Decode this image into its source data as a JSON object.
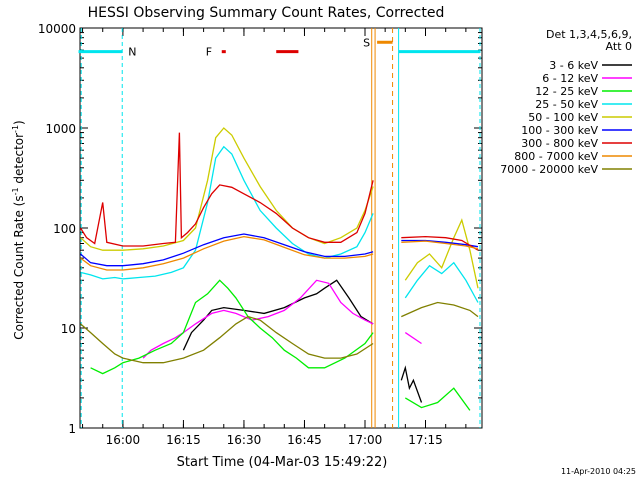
{
  "chart_data": {
    "type": "line",
    "title": "HESSI Observing Summary Count Rates, Corrected",
    "xlabel": "Start Time (04-Mar-03 15:49:22)",
    "ylabel": "Corrected Count Rate (s⁻¹ detector⁻¹)",
    "ylabel_base": "Corrected Count Rate (s",
    "ylabel_mid": " detector",
    "ylabel_end": ")",
    "ylabel_sup": "-1",
    "yscale": "log",
    "ylim": [
      1,
      10000
    ],
    "xlim": [
      "15:49:22",
      "17:29:00"
    ],
    "x_ticks": [
      "16:00",
      "16:15",
      "16:30",
      "16:45",
      "17:00",
      "17:15"
    ],
    "y_ticks": [
      "1",
      "10",
      "100",
      "1000",
      "10000"
    ],
    "grid": false,
    "legend_position": "top-right",
    "legend_header": [
      "Det 1,3,4,5,6,9,",
      "Att 0"
    ],
    "footer_date": "11-Apr-2010 04:25",
    "flags": [
      {
        "label": "N",
        "color": "#00e5ee",
        "segments": [
          [
            "15:49",
            "15:59:50"
          ],
          [
            "17:08:20",
            "17:28:30"
          ]
        ]
      },
      {
        "label": "F",
        "color": "#dd0000",
        "segments": [
          [
            "16:24:30",
            "16:25:30"
          ],
          [
            "16:38",
            "16:43:30"
          ]
        ]
      },
      {
        "label": "S",
        "color": "#ee8800",
        "segments": [
          [
            "17:03",
            "17:06:50"
          ]
        ]
      }
    ],
    "series": [
      {
        "name": "3 - 6 keV",
        "color": "#000000",
        "values": [
          [
            "16:15",
            6
          ],
          [
            "16:17",
            9
          ],
          [
            "16:20",
            12
          ],
          [
            "16:22",
            15
          ],
          [
            "16:25",
            16
          ],
          [
            "16:30",
            15
          ],
          [
            "16:35",
            14
          ],
          [
            "16:40",
            16
          ],
          [
            "16:45",
            20
          ],
          [
            "16:48",
            22
          ],
          [
            "16:50",
            25
          ],
          [
            "16:53",
            30
          ],
          [
            "16:56",
            20
          ],
          [
            "16:59",
            13
          ],
          [
            "17:02",
            11
          ],
          [
            "17:09",
            3
          ],
          [
            "17:10",
            4
          ],
          [
            "17:11",
            2.5
          ],
          [
            "17:12",
            3
          ],
          [
            "17:14",
            1.8
          ]
        ]
      },
      {
        "name": "6 - 12 keV",
        "color": "#ff00ff",
        "values": [
          [
            "16:05",
            5
          ],
          [
            "16:07",
            6
          ],
          [
            "16:10",
            7
          ],
          [
            "16:13",
            8
          ],
          [
            "16:15",
            9
          ],
          [
            "16:18",
            11
          ],
          [
            "16:22",
            14
          ],
          [
            "16:25",
            15
          ],
          [
            "16:28",
            14
          ],
          [
            "16:32",
            12
          ],
          [
            "16:36",
            13
          ],
          [
            "16:40",
            15
          ],
          [
            "16:44",
            20
          ],
          [
            "16:48",
            30
          ],
          [
            "16:51",
            28
          ],
          [
            "16:54",
            18
          ],
          [
            "16:57",
            14
          ],
          [
            "17:00",
            12
          ],
          [
            "17:02",
            11
          ],
          [
            "17:10",
            9
          ],
          [
            "17:14",
            7
          ]
        ]
      },
      {
        "name": "12 - 25 keV",
        "color": "#00ee00",
        "values": [
          [
            "15:52",
            4
          ],
          [
            "15:55",
            3.5
          ],
          [
            "15:58",
            4
          ],
          [
            "16:00",
            4.5
          ],
          [
            "16:04",
            5
          ],
          [
            "16:08",
            6
          ],
          [
            "16:12",
            7
          ],
          [
            "16:15",
            9
          ],
          [
            "16:18",
            18
          ],
          [
            "16:21",
            22
          ],
          [
            "16:24",
            30
          ],
          [
            "16:26",
            25
          ],
          [
            "16:28",
            20
          ],
          [
            "16:31",
            13
          ],
          [
            "16:34",
            10
          ],
          [
            "16:37",
            8
          ],
          [
            "16:40",
            6
          ],
          [
            "16:43",
            5
          ],
          [
            "16:46",
            4
          ],
          [
            "16:50",
            4
          ],
          [
            "16:55",
            5
          ],
          [
            "17:00",
            7
          ],
          [
            "17:02",
            9
          ],
          [
            "17:10",
            2
          ],
          [
            "17:14",
            1.6
          ],
          [
            "17:18",
            1.8
          ],
          [
            "17:22",
            2.5
          ],
          [
            "17:26",
            1.5
          ]
        ]
      },
      {
        "name": "25 - 50 keV",
        "color": "#00e5ee",
        "values": [
          [
            "15:49:30",
            36
          ],
          [
            "15:52",
            34
          ],
          [
            "15:55",
            31
          ],
          [
            "15:58",
            32
          ],
          [
            "16:00",
            31
          ],
          [
            "16:04",
            32
          ],
          [
            "16:08",
            33
          ],
          [
            "16:12",
            36
          ],
          [
            "16:15",
            40
          ],
          [
            "16:18",
            60
          ],
          [
            "16:21",
            180
          ],
          [
            "16:23",
            500
          ],
          [
            "16:25",
            650
          ],
          [
            "16:27",
            550
          ],
          [
            "16:30",
            300
          ],
          [
            "16:34",
            150
          ],
          [
            "16:38",
            100
          ],
          [
            "16:42",
            70
          ],
          [
            "16:46",
            55
          ],
          [
            "16:50",
            50
          ],
          [
            "16:54",
            55
          ],
          [
            "16:58",
            65
          ],
          [
            "17:00",
            90
          ],
          [
            "17:02",
            140
          ],
          [
            "17:10",
            20
          ],
          [
            "17:13",
            30
          ],
          [
            "17:16",
            42
          ],
          [
            "17:19",
            35
          ],
          [
            "17:22",
            45
          ],
          [
            "17:25",
            30
          ],
          [
            "17:28",
            18
          ]
        ]
      },
      {
        "name": "50 - 100 keV",
        "color": "#cccc00",
        "values": [
          [
            "15:49:30",
            80
          ],
          [
            "15:52",
            65
          ],
          [
            "15:55",
            60
          ],
          [
            "16:00",
            60
          ],
          [
            "16:05",
            62
          ],
          [
            "16:10",
            66
          ],
          [
            "16:15",
            75
          ],
          [
            "16:18",
            100
          ],
          [
            "16:21",
            300
          ],
          [
            "16:23",
            800
          ],
          [
            "16:25",
            1000
          ],
          [
            "16:27",
            850
          ],
          [
            "16:30",
            500
          ],
          [
            "16:34",
            260
          ],
          [
            "16:38",
            150
          ],
          [
            "16:42",
            100
          ],
          [
            "16:46",
            80
          ],
          [
            "16:50",
            70
          ],
          [
            "16:54",
            80
          ],
          [
            "16:58",
            100
          ],
          [
            "17:00",
            150
          ],
          [
            "17:02",
            260
          ],
          [
            "17:10",
            30
          ],
          [
            "17:13",
            45
          ],
          [
            "17:16",
            55
          ],
          [
            "17:19",
            40
          ],
          [
            "17:22",
            80
          ],
          [
            "17:24",
            120
          ],
          [
            "17:26",
            60
          ],
          [
            "17:28",
            25
          ]
        ]
      },
      {
        "name": "100 - 300 keV",
        "color": "#0000ff",
        "values": [
          [
            "15:49:30",
            55
          ],
          [
            "15:52",
            45
          ],
          [
            "15:56",
            42
          ],
          [
            "16:00",
            42
          ],
          [
            "16:05",
            44
          ],
          [
            "16:10",
            48
          ],
          [
            "16:15",
            56
          ],
          [
            "16:20",
            68
          ],
          [
            "16:25",
            80
          ],
          [
            "16:30",
            87
          ],
          [
            "16:35",
            80
          ],
          [
            "16:40",
            68
          ],
          [
            "16:45",
            58
          ],
          [
            "16:50",
            52
          ],
          [
            "16:55",
            52
          ],
          [
            "17:00",
            55
          ],
          [
            "17:02",
            58
          ],
          [
            "17:09",
            75
          ],
          [
            "17:15",
            75
          ],
          [
            "17:20",
            72
          ],
          [
            "17:25",
            68
          ],
          [
            "17:28",
            65
          ]
        ]
      },
      {
        "name": "300 - 800 keV",
        "color": "#dd0000",
        "values": [
          [
            "15:49:30",
            100
          ],
          [
            "15:51",
            80
          ],
          [
            "15:53",
            70
          ],
          [
            "15:55",
            180
          ],
          [
            "15:56",
            72
          ],
          [
            "16:00",
            66
          ],
          [
            "16:05",
            66
          ],
          [
            "16:10",
            70
          ],
          [
            "16:13",
            72
          ],
          [
            "16:14",
            900
          ],
          [
            "16:14:30",
            80
          ],
          [
            "16:16",
            90
          ],
          [
            "16:18",
            110
          ],
          [
            "16:20",
            160
          ],
          [
            "16:22",
            220
          ],
          [
            "16:24",
            270
          ],
          [
            "16:27",
            255
          ],
          [
            "16:30",
            220
          ],
          [
            "16:34",
            180
          ],
          [
            "16:38",
            140
          ],
          [
            "16:42",
            100
          ],
          [
            "16:46",
            80
          ],
          [
            "16:50",
            72
          ],
          [
            "16:54",
            72
          ],
          [
            "16:58",
            90
          ],
          [
            "17:00",
            140
          ],
          [
            "17:02",
            300
          ],
          [
            "17:09",
            80
          ],
          [
            "17:15",
            82
          ],
          [
            "17:20",
            80
          ],
          [
            "17:24",
            75
          ],
          [
            "17:28",
            60
          ]
        ]
      },
      {
        "name": "800 - 7000 keV",
        "color": "#ee8800",
        "values": [
          [
            "15:49:30",
            50
          ],
          [
            "15:52",
            42
          ],
          [
            "15:56",
            38
          ],
          [
            "16:00",
            38
          ],
          [
            "16:05",
            40
          ],
          [
            "16:10",
            44
          ],
          [
            "16:15",
            50
          ],
          [
            "16:20",
            62
          ],
          [
            "16:25",
            74
          ],
          [
            "16:30",
            82
          ],
          [
            "16:35",
            76
          ],
          [
            "16:40",
            64
          ],
          [
            "16:45",
            54
          ],
          [
            "16:50",
            50
          ],
          [
            "16:55",
            50
          ],
          [
            "17:00",
            52
          ],
          [
            "17:02",
            55
          ],
          [
            "17:09",
            72
          ],
          [
            "17:15",
            74
          ],
          [
            "17:20",
            70
          ],
          [
            "17:25",
            66
          ],
          [
            "17:28",
            62
          ]
        ]
      },
      {
        "name": "7000 - 20000 keV",
        "color": "#808000",
        "values": [
          [
            "15:49:30",
            11
          ],
          [
            "15:52",
            9
          ],
          [
            "15:55",
            7
          ],
          [
            "15:58",
            5.5
          ],
          [
            "16:00",
            5
          ],
          [
            "16:05",
            4.5
          ],
          [
            "16:10",
            4.5
          ],
          [
            "16:15",
            5
          ],
          [
            "16:20",
            6
          ],
          [
            "16:24",
            8
          ],
          [
            "16:28",
            11
          ],
          [
            "16:31",
            13
          ],
          [
            "16:34",
            12
          ],
          [
            "16:38",
            9
          ],
          [
            "16:42",
            7
          ],
          [
            "16:46",
            5.5
          ],
          [
            "16:50",
            5
          ],
          [
            "16:54",
            5
          ],
          [
            "16:58",
            5.5
          ],
          [
            "17:02",
            7
          ],
          [
            "17:09",
            13
          ],
          [
            "17:14",
            16
          ],
          [
            "17:18",
            18
          ],
          [
            "17:22",
            17
          ],
          [
            "17:26",
            15
          ],
          [
            "17:28",
            13
          ]
        ]
      }
    ]
  }
}
